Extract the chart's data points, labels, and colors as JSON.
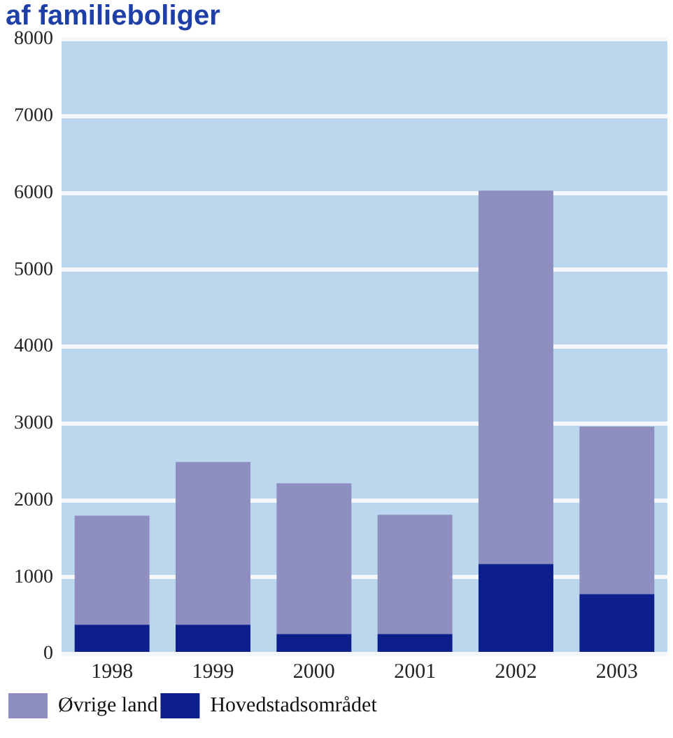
{
  "chart_data": {
    "type": "bar",
    "title": "af familieboliger",
    "categories": [
      "1998",
      "1999",
      "2000",
      "2001",
      "2002",
      "2003"
    ],
    "stacked": true,
    "series": [
      {
        "name": "Hovedstadsområdet",
        "color": "#0c1f8a",
        "values": [
          380,
          380,
          260,
          260,
          1170,
          780
        ]
      },
      {
        "name": "Øvrige land",
        "color": "#8e8ec0",
        "values": [
          1420,
          2120,
          1960,
          1550,
          4860,
          2180
        ]
      }
    ],
    "ylim": [
      0,
      8000
    ],
    "yticks": [
      0,
      1000,
      2000,
      3000,
      4000,
      5000,
      6000,
      7000,
      8000
    ],
    "grid": "y",
    "legend": "bottom left"
  }
}
